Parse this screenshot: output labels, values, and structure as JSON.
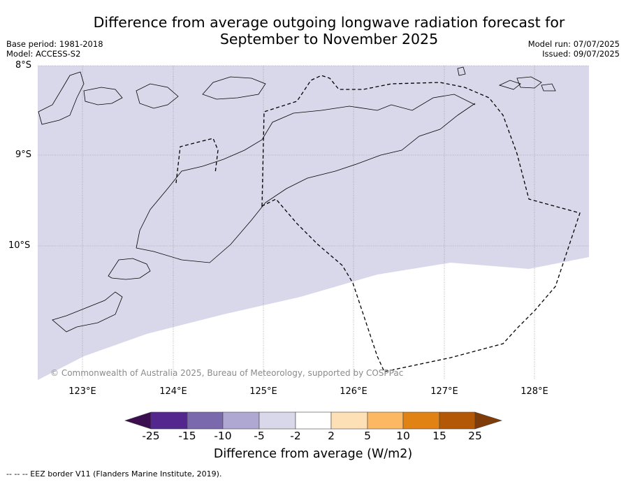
{
  "title_line1": "Difference from average outgoing longwave radiation forecast for",
  "title_line2": "September to November 2025",
  "base_period": "Base period: 1981-2018",
  "model": "Model: ACCESS-S2",
  "model_run": "Model run: 07/07/2025",
  "issued": "Issued: 09/07/2025",
  "lat_labels": [
    "8°S",
    "9°S",
    "10°S"
  ],
  "lon_labels": [
    "123°E",
    "124°E",
    "125°E",
    "126°E",
    "127°E",
    "128°E"
  ],
  "copyright": "© Commonwealth of Australia 2025, Bureau of Meteorology, supported by COSPPac",
  "colorbar": {
    "tick_labels": [
      "-25",
      "-15",
      "-10",
      "-5",
      "-2",
      "2",
      "5",
      "10",
      "15",
      "25"
    ],
    "colors": [
      "#3b0f4f",
      "#54278f",
      "#7a6aad",
      "#afa8d3",
      "#d8d8ea",
      "#ffffff",
      "#fee0b6",
      "#fdb863",
      "#e08214",
      "#b35806",
      "#7f3b08"
    ],
    "label": "Difference from average (W/m2)"
  },
  "map_fill_color": "#d8d8ea",
  "eez_note": "--  --  -- EEZ border V11 (Flanders Marine Institute, 2019)."
}
